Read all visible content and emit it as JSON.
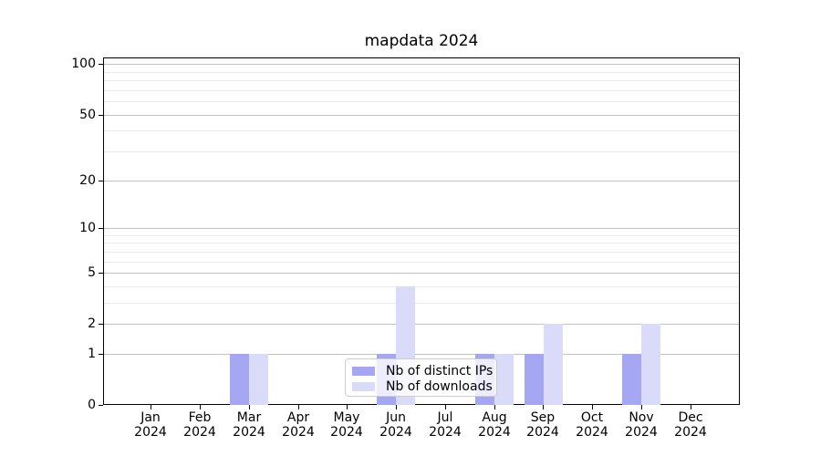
{
  "title": "mapdata 2024",
  "chart_data": {
    "type": "bar",
    "title": "mapdata 2024",
    "categories": [
      "Jan",
      "Feb",
      "Mar",
      "Apr",
      "May",
      "Jun",
      "Jul",
      "Aug",
      "Sep",
      "Oct",
      "Nov",
      "Dec"
    ],
    "category_year": "2024",
    "series": [
      {
        "name": "Nb of distinct IPs",
        "color": "#a5a7f3",
        "values": [
          0,
          0,
          1,
          0,
          0,
          1,
          0,
          1,
          1,
          0,
          1,
          0
        ]
      },
      {
        "name": "Nb of downloads",
        "color": "#dadbf8",
        "values": [
          0,
          0,
          1,
          0,
          0,
          4,
          0,
          1,
          2,
          0,
          2,
          0
        ]
      }
    ],
    "y_axis": {
      "scale": "log10(1+v)",
      "major_ticks": [
        0,
        1,
        2,
        5,
        10,
        20,
        50,
        100
      ],
      "minor_ticks": [
        3,
        4,
        6,
        7,
        8,
        9,
        30,
        40,
        60,
        70,
        80,
        90
      ],
      "ylim": [
        0,
        110
      ]
    },
    "xlabel": "",
    "ylabel": "",
    "grid": true,
    "legend": {
      "position": "lower center",
      "items": [
        "Nb of distinct IPs",
        "Nb of downloads"
      ]
    }
  }
}
